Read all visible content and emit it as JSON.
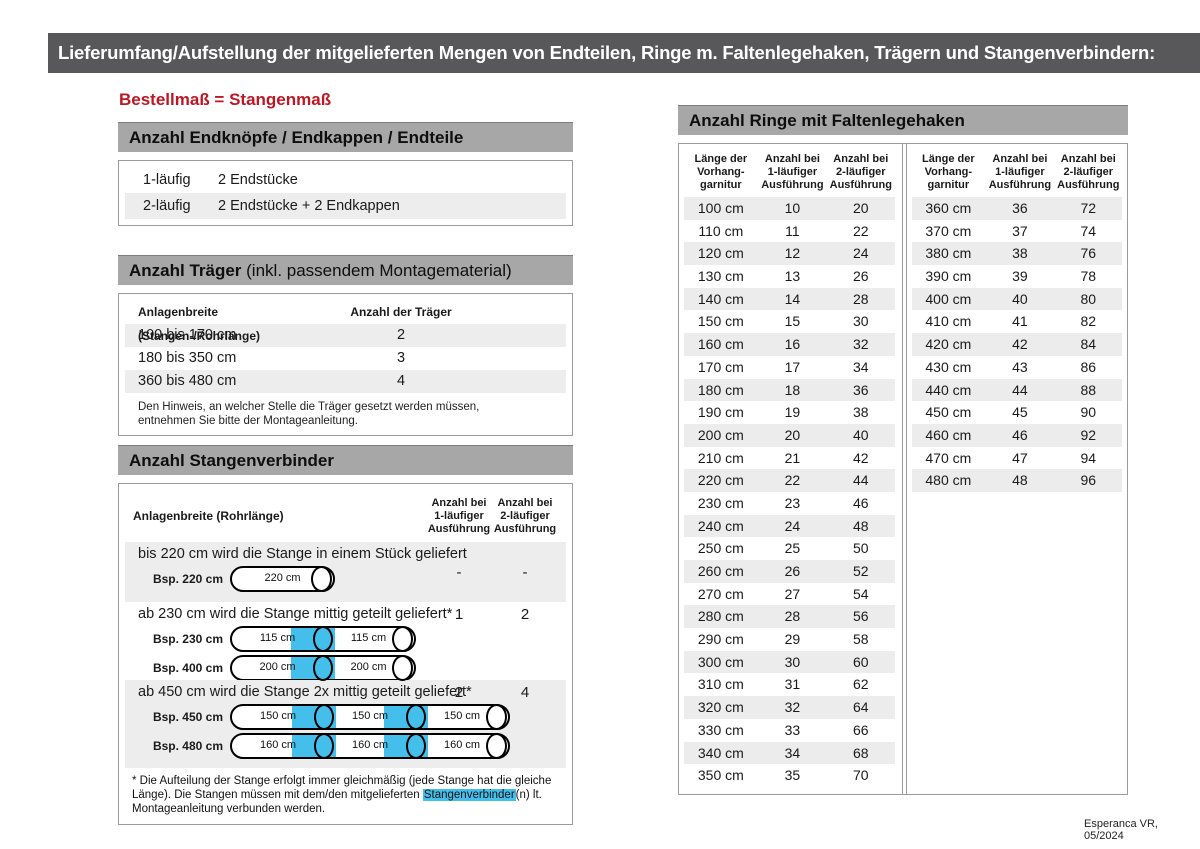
{
  "title_bar": "Lieferumfang/Aufstellung der mitgelieferten Mengen von Endteilen, Ringe m. Faltenlegehaken, Trägern und Stangenverbindern:",
  "subtitle": "Bestellmaß = Stangenmaß",
  "footer": "Esperanca VR, 05/2024",
  "colors": {
    "topbar_gray": "#58585a",
    "section_header_gray": "#a7a7a7",
    "accent_red": "#be1724",
    "highlight_blue": "#44bfec",
    "row_stripe_gray": "#ededed"
  },
  "endteile": {
    "header": "Anzahl Endknöpfe / Endkappen / Endteile",
    "rows": [
      {
        "label": "1-läufig",
        "value": "2 Endstücke"
      },
      {
        "label": "2-läufig",
        "value": "2 Endstücke + 2 Endkappen"
      }
    ]
  },
  "traeger": {
    "header_bold": "Anzahl Träger",
    "header_rest": " (inkl. passendem Montagematerial)",
    "col_width": "Anlagenbreite (Stangen-/Rohrlänge)",
    "col_count": "Anzahl der Träger",
    "rows": [
      {
        "range": "100 bis 170 cm",
        "count": "2"
      },
      {
        "range": "180 bis 350 cm",
        "count": "3"
      },
      {
        "range": "360 bis 480 cm",
        "count": "4"
      }
    ],
    "note": "Den Hinweis, an welcher Stelle die Träger gesetzt werden müssen, entnehmen Sie bitte der Montageanleitung."
  },
  "verbinder": {
    "header": "Anzahl Stangenverbinder",
    "col_width": "Anlagenbreite (Rohrlänge)",
    "col_1l": "Anzahl bei\n1-läufiger\nAusführung",
    "col_2l": "Anzahl bei\n2-läufiger\nAusführung",
    "rows": [
      {
        "text": "bis 220 cm wird die Stange in einem Stück geliefert",
        "v1": "-",
        "v2": "-",
        "diagrams": [
          {
            "label": "Bsp. 220 cm",
            "segments": [
              "220 cm"
            ]
          }
        ]
      },
      {
        "text": "ab 230 cm wird die Stange mittig geteilt geliefert*",
        "v1": "1",
        "v2": "2",
        "diagrams": [
          {
            "label": "Bsp. 230 cm",
            "segments": [
              "115 cm",
              "115 cm"
            ]
          },
          {
            "label": "Bsp. 400 cm",
            "segments": [
              "200 cm",
              "200 cm"
            ]
          }
        ]
      },
      {
        "text": "ab 450 cm wird die Stange 2x mittig geteilt geliefert*",
        "v1": "2",
        "v2": "4",
        "diagrams": [
          {
            "label": "Bsp. 450 cm",
            "segments": [
              "150 cm",
              "150 cm",
              "150 cm"
            ]
          },
          {
            "label": "Bsp. 480 cm",
            "segments": [
              "160 cm",
              "160 cm",
              "160 cm"
            ]
          }
        ]
      }
    ],
    "footnote_pre": "* Die Aufteilung der Stange erfolgt immer gleichmäßig (jede Stange hat die gleiche Länge). Die Stangen müssen mit dem/den mitgelieferten ",
    "footnote_highlight": "Stangenverbinder",
    "footnote_post": "(n) lt. Montageanleitung verbunden werden."
  },
  "ringe": {
    "header": "Anzahl Ringe mit Faltenlegehaken",
    "col_len": "Länge der\nVorhang-\ngarnitur",
    "col_1l": "Anzahl bei\n1-läufiger\nAusführung",
    "col_2l": "Anzahl bei\n2-läufiger\nAusführung",
    "table_left": [
      [
        "100 cm",
        "10",
        "20"
      ],
      [
        "110 cm",
        "11",
        "22"
      ],
      [
        "120 cm",
        "12",
        "24"
      ],
      [
        "130 cm",
        "13",
        "26"
      ],
      [
        "140 cm",
        "14",
        "28"
      ],
      [
        "150 cm",
        "15",
        "30"
      ],
      [
        "160 cm",
        "16",
        "32"
      ],
      [
        "170 cm",
        "17",
        "34"
      ],
      [
        "180 cm",
        "18",
        "36"
      ],
      [
        "190 cm",
        "19",
        "38"
      ],
      [
        "200 cm",
        "20",
        "40"
      ],
      [
        "210 cm",
        "21",
        "42"
      ],
      [
        "220 cm",
        "22",
        "44"
      ],
      [
        "230 cm",
        "23",
        "46"
      ],
      [
        "240 cm",
        "24",
        "48"
      ],
      [
        "250 cm",
        "25",
        "50"
      ],
      [
        "260 cm",
        "26",
        "52"
      ],
      [
        "270 cm",
        "27",
        "54"
      ],
      [
        "280 cm",
        "28",
        "56"
      ],
      [
        "290 cm",
        "29",
        "58"
      ],
      [
        "300 cm",
        "30",
        "60"
      ],
      [
        "310 cm",
        "31",
        "62"
      ],
      [
        "320 cm",
        "32",
        "64"
      ],
      [
        "330 cm",
        "33",
        "66"
      ],
      [
        "340 cm",
        "34",
        "68"
      ],
      [
        "350 cm",
        "35",
        "70"
      ]
    ],
    "table_right": [
      [
        "360 cm",
        "36",
        "72"
      ],
      [
        "370 cm",
        "37",
        "74"
      ],
      [
        "380 cm",
        "38",
        "76"
      ],
      [
        "390 cm",
        "39",
        "78"
      ],
      [
        "400 cm",
        "40",
        "80"
      ],
      [
        "410 cm",
        "41",
        "82"
      ],
      [
        "420 cm",
        "42",
        "84"
      ],
      [
        "430 cm",
        "43",
        "86"
      ],
      [
        "440 cm",
        "44",
        "88"
      ],
      [
        "450 cm",
        "45",
        "90"
      ],
      [
        "460 cm",
        "46",
        "92"
      ],
      [
        "470 cm",
        "47",
        "94"
      ],
      [
        "480 cm",
        "48",
        "96"
      ]
    ]
  }
}
